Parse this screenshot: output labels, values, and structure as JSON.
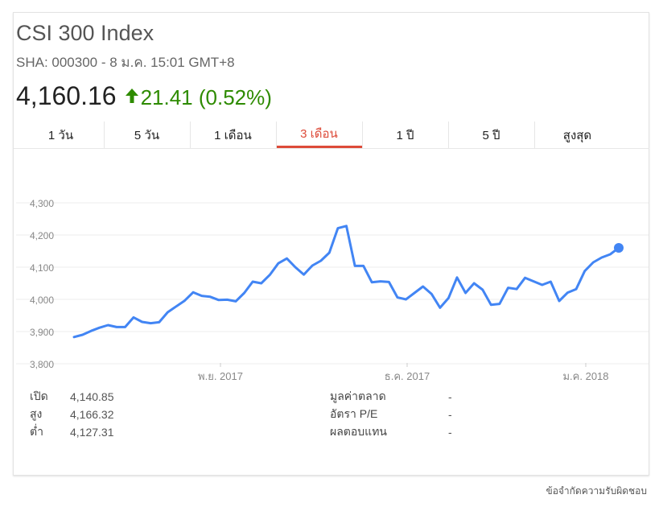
{
  "quote": {
    "title": "CSI 300 Index",
    "subtitle": "SHA: 000300 - 8 ม.ค. 15:01 GMT+8",
    "price": "4,160.16",
    "change": "21.41 (0.52%)",
    "colors": {
      "positive": "#2e8b00",
      "line": "#4285f4",
      "active_tab": "#dd4b39"
    }
  },
  "tabs": [
    {
      "label": "1 วัน"
    },
    {
      "label": "5 วัน"
    },
    {
      "label": "1 เดือน"
    },
    {
      "label": "3 เดือน",
      "active": true
    },
    {
      "label": "1 ปี"
    },
    {
      "label": "5 ปี"
    },
    {
      "label": "สูงสุด"
    }
  ],
  "chart_data": {
    "type": "line",
    "y_ticks": [
      "4,300",
      "4,200",
      "4,100",
      "4,000",
      "3,900",
      "3,800"
    ],
    "x_ticks": [
      "พ.ย. 2017",
      "ธ.ค. 2017",
      "ม.ค. 2018"
    ],
    "ylim": [
      3775,
      4325
    ],
    "grid": true,
    "series": [
      {
        "values": [
          3883,
          3890,
          3902,
          3912,
          3920,
          3914,
          3914,
          3944,
          3930,
          3926,
          3929,
          3960,
          3978,
          3996,
          4022,
          4011,
          4008,
          3998,
          3999,
          3994,
          4020,
          4055,
          4050,
          4076,
          4112,
          4127,
          4100,
          4077,
          4105,
          4120,
          4145,
          4221,
          4228,
          4104,
          4104,
          4053,
          4056,
          4054,
          4006,
          4000,
          4020,
          4040,
          4017,
          3974,
          4004,
          4068,
          4020,
          4050,
          4030,
          3983,
          3986,
          4036,
          4032,
          4067,
          4056,
          4045,
          4055,
          3995,
          4021,
          4032,
          4088,
          4115,
          4130,
          4140,
          4160
        ]
      }
    ]
  },
  "stats_left": [
    {
      "label": "เปิด",
      "value": "4,140.85"
    },
    {
      "label": "สูง",
      "value": "4,166.32"
    },
    {
      "label": "ต่ำ",
      "value": "4,127.31"
    }
  ],
  "stats_right": [
    {
      "label": "มูลค่าตลาด",
      "value": "-"
    },
    {
      "label": "อัตรา P/E",
      "value": "-"
    },
    {
      "label": "ผลตอบแทน",
      "value": "-"
    }
  ],
  "footer": {
    "disclaimer": "ข้อจำกัดความรับผิดชอบ"
  }
}
